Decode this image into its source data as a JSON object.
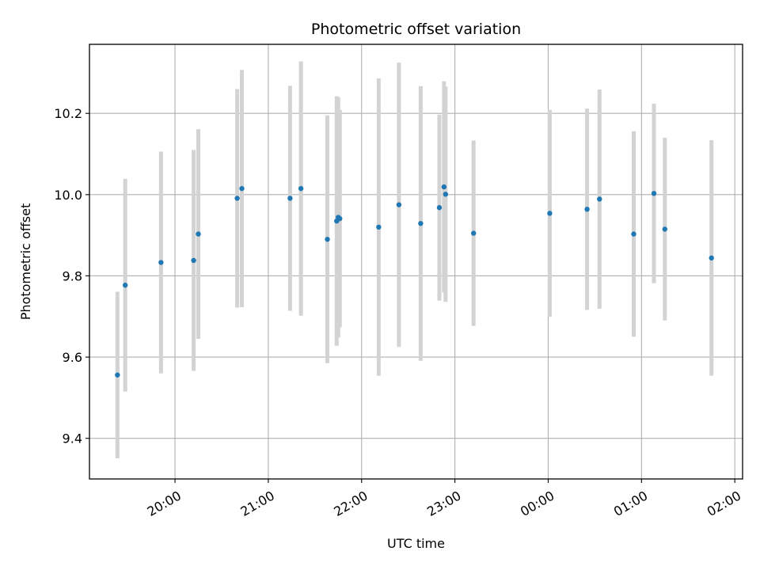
{
  "chart_data": {
    "type": "scatter",
    "title": "Photometric offset variation",
    "xlabel": "UTC time",
    "ylabel": "Photometric offset",
    "x_axis_kind": "time",
    "xlim": [
      "19:05",
      "02:05"
    ],
    "ylim": [
      9.3,
      10.37
    ],
    "grid": true,
    "x_ticks": [
      "20:00",
      "21:00",
      "22:00",
      "23:00",
      "00:00",
      "01:00",
      "02:00"
    ],
    "y_ticks": [
      "9.4",
      "9.6",
      "9.8",
      "10.0",
      "10.2"
    ],
    "colors": {
      "point": "#1f77b4",
      "errorbar": "#d3d3d3",
      "grid": "#b0b0b0"
    },
    "points": [
      {
        "x": "19:23",
        "y": 9.556,
        "err": 0.205
      },
      {
        "x": "19:28",
        "y": 9.777,
        "err": 0.262
      },
      {
        "x": "19:51",
        "y": 9.833,
        "err": 0.273
      },
      {
        "x": "20:12",
        "y": 9.838,
        "err": 0.272
      },
      {
        "x": "20:15",
        "y": 9.903,
        "err": 0.258
      },
      {
        "x": "20:40",
        "y": 9.991,
        "err": 0.269
      },
      {
        "x": "20:43",
        "y": 10.015,
        "err": 0.292
      },
      {
        "x": "21:14",
        "y": 9.991,
        "err": 0.277
      },
      {
        "x": "21:21",
        "y": 10.015,
        "err": 0.313
      },
      {
        "x": "21:38",
        "y": 9.89,
        "err": 0.305
      },
      {
        "x": "21:44",
        "y": 9.935,
        "err": 0.307
      },
      {
        "x": "21:45",
        "y": 9.944,
        "err": 0.296
      },
      {
        "x": "21:46",
        "y": 9.941,
        "err": 0.268
      },
      {
        "x": "22:11",
        "y": 9.92,
        "err": 0.366
      },
      {
        "x": "22:24",
        "y": 9.975,
        "err": 0.35
      },
      {
        "x": "22:38",
        "y": 9.929,
        "err": 0.338
      },
      {
        "x": "22:50",
        "y": 9.968,
        "err": 0.229
      },
      {
        "x": "22:53",
        "y": 10.019,
        "err": 0.26
      },
      {
        "x": "22:54",
        "y": 10.001,
        "err": 0.265
      },
      {
        "x": "23:12",
        "y": 9.905,
        "err": 0.228
      },
      {
        "x": "00:01",
        "y": 9.954,
        "err": 0.255
      },
      {
        "x": "00:25",
        "y": 9.964,
        "err": 0.248
      },
      {
        "x": "00:33",
        "y": 9.989,
        "err": 0.27
      },
      {
        "x": "00:55",
        "y": 9.903,
        "err": 0.253
      },
      {
        "x": "01:08",
        "y": 10.003,
        "err": 0.221
      },
      {
        "x": "01:15",
        "y": 9.915,
        "err": 0.225
      },
      {
        "x": "01:45",
        "y": 9.844,
        "err": 0.29
      }
    ]
  }
}
